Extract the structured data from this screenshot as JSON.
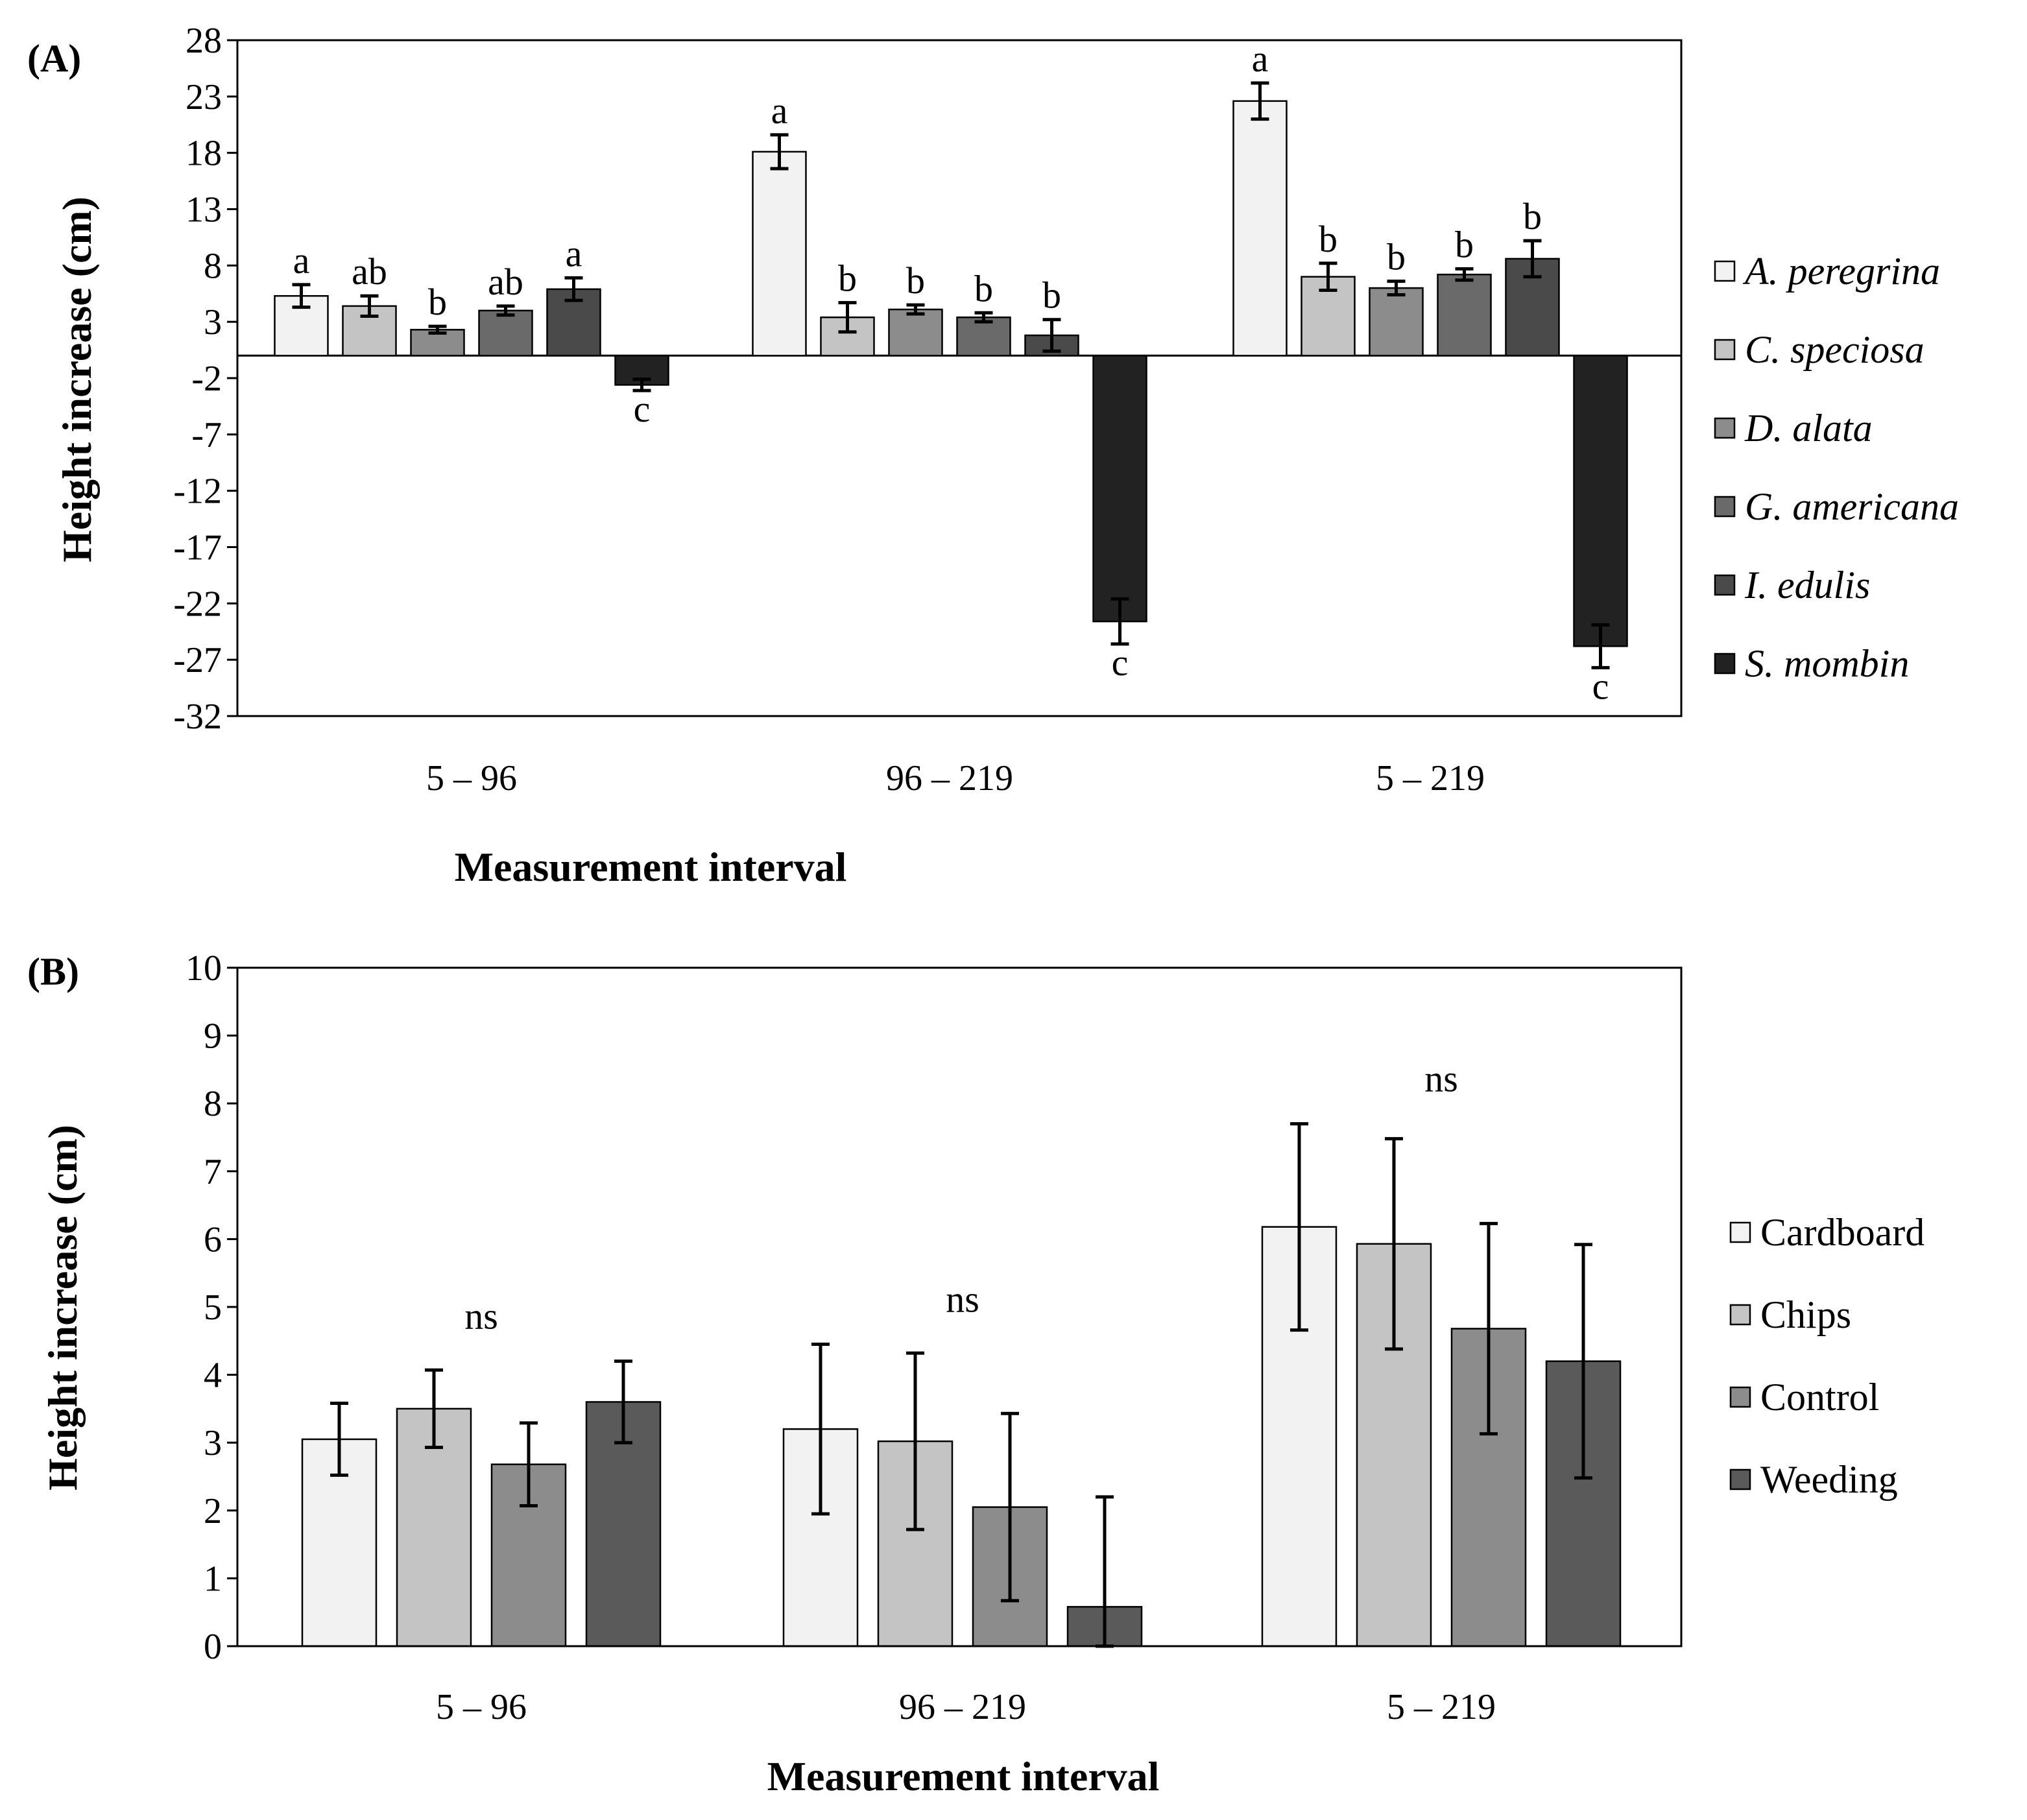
{
  "chart_data": [
    {
      "panel_label": "(A)",
      "type": "bar",
      "categories": [
        "5 – 96",
        "96 – 219",
        "5 – 219"
      ],
      "xlabel": "Measurement interval",
      "ylabel": "Height increase (cm)",
      "ylim": [
        -32,
        28
      ],
      "yticks": [
        28,
        23,
        18,
        13,
        8,
        3,
        -2,
        -7,
        -12,
        -17,
        -22,
        -27,
        -32
      ],
      "legend_position": "right",
      "legend_italic": true,
      "series": [
        {
          "name": "A. peregrina",
          "color": "#f2f2f2",
          "values": [
            5.3,
            18.1,
            22.6
          ],
          "errors": [
            1.0,
            1.5,
            1.6
          ],
          "letters": [
            "a",
            "a",
            "a"
          ]
        },
        {
          "name": "C. speciosa",
          "color": "#c4c4c4",
          "values": [
            4.4,
            3.4,
            7.0
          ],
          "errors": [
            0.9,
            1.3,
            1.2
          ],
          "letters": [
            "ab",
            "b",
            "b"
          ]
        },
        {
          "name": "D. alata",
          "color": "#8c8c8c",
          "values": [
            2.3,
            4.1,
            6.0
          ],
          "errors": [
            0.3,
            0.4,
            0.6
          ],
          "letters": [
            "b",
            "b",
            "b"
          ]
        },
        {
          "name": "G. americana",
          "color": "#6a6a6a",
          "values": [
            4.0,
            3.4,
            7.2
          ],
          "errors": [
            0.4,
            0.4,
            0.5
          ],
          "letters": [
            "ab",
            "b",
            "b"
          ]
        },
        {
          "name": "I. edulis",
          "color": "#4a4a4a",
          "values": [
            5.9,
            1.8,
            8.6
          ],
          "errors": [
            1.0,
            1.4,
            1.6
          ],
          "letters": [
            "a",
            "b",
            "b"
          ]
        },
        {
          "name": "S. mombin",
          "color": "#222222",
          "values": [
            -2.6,
            -23.6,
            -25.8
          ],
          "errors": [
            0.5,
            2.0,
            1.9
          ],
          "letters": [
            "c",
            "c",
            "c"
          ]
        }
      ]
    },
    {
      "panel_label": "(B)",
      "type": "bar",
      "categories": [
        "5 – 96",
        "96 – 219",
        "5 – 219"
      ],
      "xlabel": "Measurement interval",
      "ylabel": "Height increase (cm)",
      "ylim": [
        0,
        10
      ],
      "yticks": [
        10,
        9,
        8,
        7,
        6,
        5,
        4,
        3,
        2,
        1,
        0
      ],
      "legend_position": "right",
      "legend_italic": false,
      "group_labels": [
        "ns",
        "ns",
        "ns"
      ],
      "series": [
        {
          "name": "Cardboard",
          "color": "#f2f2f2",
          "values": [
            3.05,
            3.2,
            6.18
          ],
          "errors": [
            0.53,
            1.25,
            1.52
          ]
        },
        {
          "name": "Chips",
          "color": "#c4c4c4",
          "values": [
            3.5,
            3.02,
            5.93
          ],
          "errors": [
            0.57,
            1.3,
            1.55
          ]
        },
        {
          "name": "Control",
          "color": "#8c8c8c",
          "values": [
            2.68,
            2.05,
            4.68
          ],
          "errors": [
            0.61,
            1.38,
            1.55
          ]
        },
        {
          "name": "Weeding",
          "color": "#5a5a5a",
          "values": [
            3.6,
            0.58,
            4.2
          ],
          "errors": [
            0.6,
            1.62,
            1.72
          ]
        }
      ]
    }
  ]
}
